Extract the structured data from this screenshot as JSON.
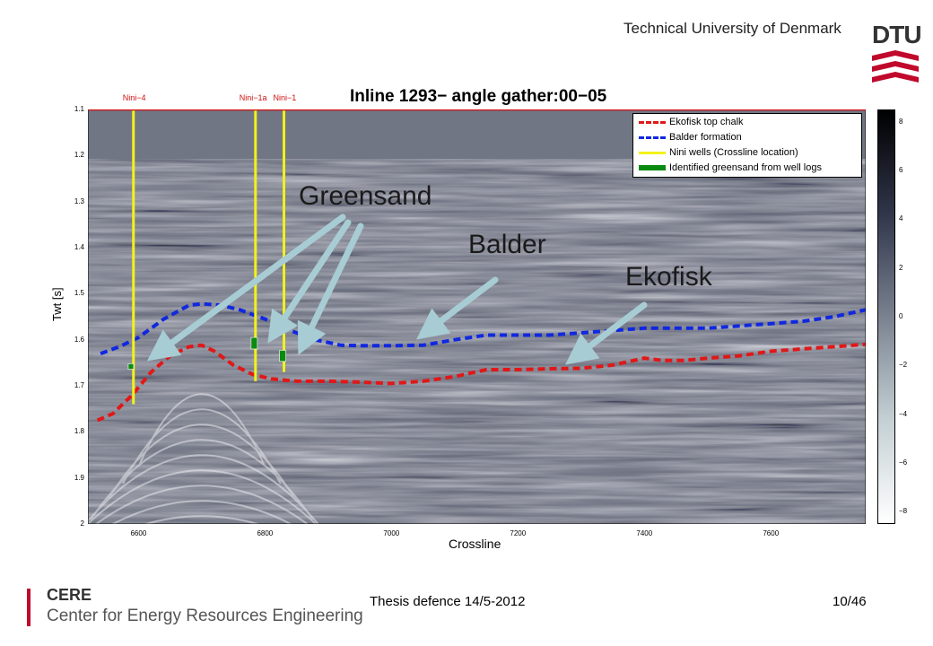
{
  "header": {
    "title": "Technical University of Denmark",
    "logo_text": "DTU"
  },
  "footer": {
    "org_short": "CERE",
    "org_full": "Center for Energy Resources Engineering",
    "event": "Thesis defence 14/5-2012",
    "page": "10/46"
  },
  "colors": {
    "ekofisk": "#e01818",
    "balder": "#1028e0",
    "wells": "#f2f21a",
    "greensand": "#0a8a10",
    "arrow": "#a8ccd4",
    "brand": "#c0092b"
  },
  "annotations": {
    "greensand": "Greensand",
    "balder": "Balder",
    "ekofisk": "Ekofisk"
  },
  "chart_data": {
    "type": "line",
    "title": "Inline 1293−  angle gather:00−05",
    "xlabel": "Crossline",
    "ylabel": "Twt [s]",
    "xlim": [
      6520,
      7750
    ],
    "ylim": [
      2.0,
      1.1
    ],
    "y_reversed": true,
    "xticks": [
      6600,
      6800,
      7000,
      7200,
      7400,
      7600
    ],
    "yticks": [
      1.1,
      1.2,
      1.3,
      1.4,
      1.5,
      1.6,
      1.7,
      1.8,
      1.9,
      2
    ],
    "colorbar": {
      "ticks": [
        8,
        6,
        4,
        2,
        0,
        -2,
        -4,
        -6,
        -8
      ],
      "range": [
        -8.5,
        8.5
      ]
    },
    "legend_position": "top-right",
    "series": [
      {
        "name": "Ekofisk top chalk",
        "style": "dashed",
        "x": [
          6535,
          6560,
          6590,
          6620,
          6650,
          6680,
          6700,
          6720,
          6750,
          6780,
          6810,
          6850,
          6900,
          6950,
          7000,
          7050,
          7100,
          7150,
          7200,
          7250,
          7300,
          7350,
          7400,
          7430,
          7460,
          7500,
          7550,
          7600,
          7650,
          7700,
          7750
        ],
        "y": [
          1.775,
          1.76,
          1.72,
          1.67,
          1.635,
          1.615,
          1.612,
          1.625,
          1.655,
          1.675,
          1.685,
          1.69,
          1.69,
          1.692,
          1.695,
          1.69,
          1.68,
          1.665,
          1.665,
          1.663,
          1.662,
          1.655,
          1.64,
          1.645,
          1.645,
          1.64,
          1.635,
          1.625,
          1.62,
          1.615,
          1.61
        ]
      },
      {
        "name": "Balder formation",
        "style": "dashed",
        "x": [
          6540,
          6570,
          6600,
          6640,
          6680,
          6700,
          6730,
          6760,
          6800,
          6840,
          6880,
          6920,
          6960,
          7000,
          7050,
          7100,
          7150,
          7200,
          7250,
          7300,
          7350,
          7400,
          7450,
          7500,
          7550,
          7600,
          7650,
          7700,
          7750
        ],
        "y": [
          1.63,
          1.615,
          1.595,
          1.555,
          1.525,
          1.522,
          1.525,
          1.535,
          1.555,
          1.58,
          1.6,
          1.612,
          1.613,
          1.613,
          1.612,
          1.6,
          1.59,
          1.59,
          1.59,
          1.585,
          1.58,
          1.575,
          1.575,
          1.575,
          1.57,
          1.565,
          1.56,
          1.55,
          1.535
        ]
      },
      {
        "name": "Nini wells (Crossline location)",
        "style": "solid",
        "wells": [
          {
            "name": "Nini−4",
            "x": 6592,
            "y_top": 1.1,
            "y_bottom": 1.74
          },
          {
            "name": "Nini−1a",
            "x": 6785,
            "y_top": 1.1,
            "y_bottom": 1.69
          },
          {
            "name": "Nini−1",
            "x": 6830,
            "y_top": 1.1,
            "y_bottom": 1.67
          }
        ]
      },
      {
        "name": "Identified greensand from well logs",
        "style": "marker",
        "intervals": [
          {
            "x": 6588,
            "y_top": 1.652,
            "y_bottom": 1.664
          },
          {
            "x": 6783,
            "y_top": 1.595,
            "y_bottom": 1.62
          },
          {
            "x": 6828,
            "y_top": 1.623,
            "y_bottom": 1.647
          }
        ]
      }
    ]
  }
}
